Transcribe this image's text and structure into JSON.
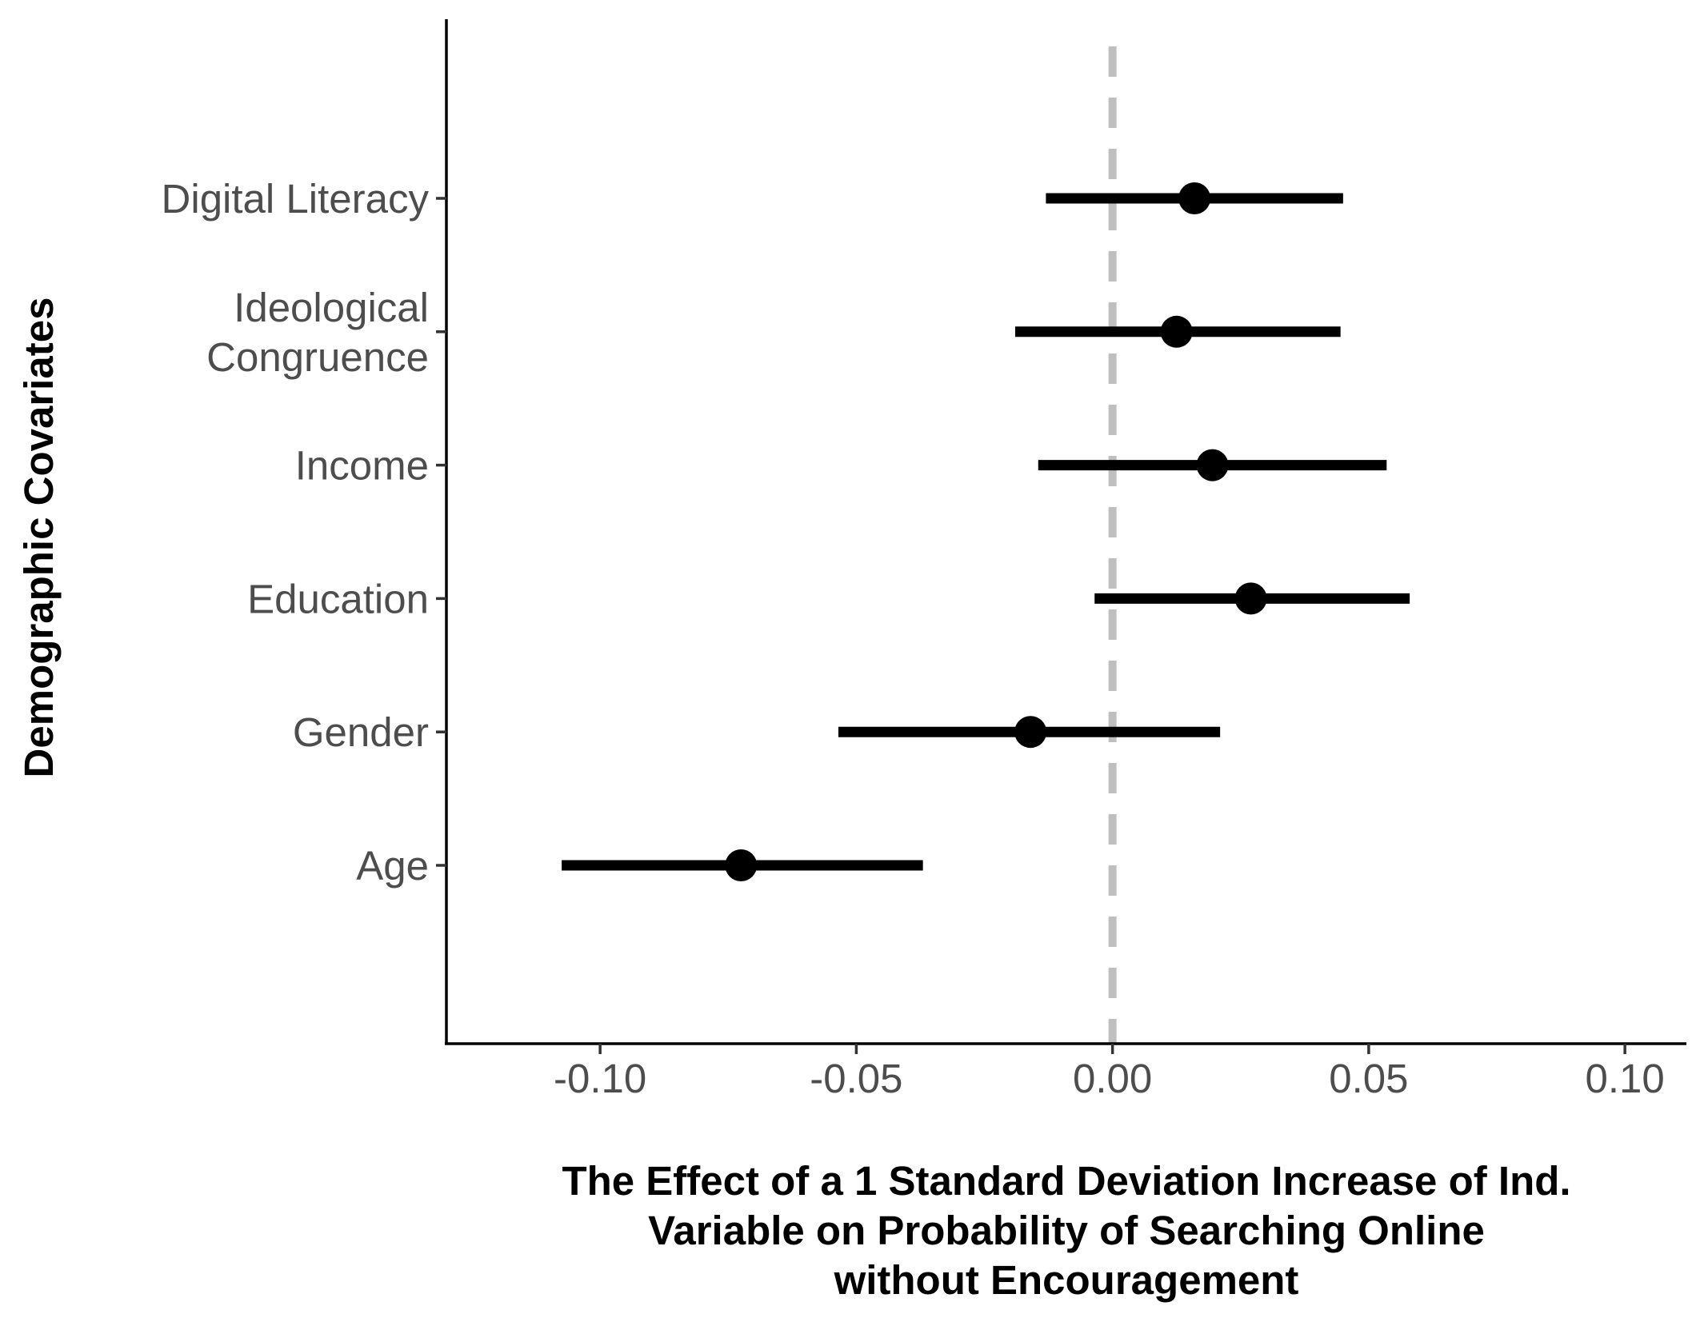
{
  "chart_data": {
    "type": "dot-whisker",
    "xlabel_lines": [
      "The Effect of a 1 Standard Deviation Increase of Ind.",
      "Variable on Probability of Searching Online",
      "without Encouragement"
    ],
    "ylabel": "Demographic Covariates",
    "xlim": [
      -0.13,
      0.112
    ],
    "x_ticks": [
      {
        "value": -0.1,
        "label": "-0.10"
      },
      {
        "value": -0.05,
        "label": "-0.05"
      },
      {
        "value": 0.0,
        "label": "0.00"
      },
      {
        "value": 0.05,
        "label": "0.05"
      },
      {
        "value": 0.1,
        "label": "0.10"
      }
    ],
    "reference_line": {
      "x": 0,
      "style": "dashed",
      "color": "#bfbfbf"
    },
    "grid": false,
    "point_color": "#000000",
    "categories": [
      {
        "label_lines": [
          "Digital Literacy"
        ],
        "estimate": 0.016,
        "ci_low": -0.013,
        "ci_high": 0.045
      },
      {
        "label_lines": [
          "Ideological",
          "Congruence"
        ],
        "estimate": 0.0125,
        "ci_low": -0.019,
        "ci_high": 0.0445
      },
      {
        "label_lines": [
          "Income"
        ],
        "estimate": 0.0195,
        "ci_low": -0.0145,
        "ci_high": 0.0535
      },
      {
        "label_lines": [
          "Education"
        ],
        "estimate": 0.027,
        "ci_low": -0.0035,
        "ci_high": 0.058
      },
      {
        "label_lines": [
          "Gender"
        ],
        "estimate": -0.016,
        "ci_low": -0.0535,
        "ci_high": 0.021
      },
      {
        "label_lines": [
          "Age"
        ],
        "estimate": -0.0725,
        "ci_low": -0.1075,
        "ci_high": -0.037
      }
    ]
  }
}
